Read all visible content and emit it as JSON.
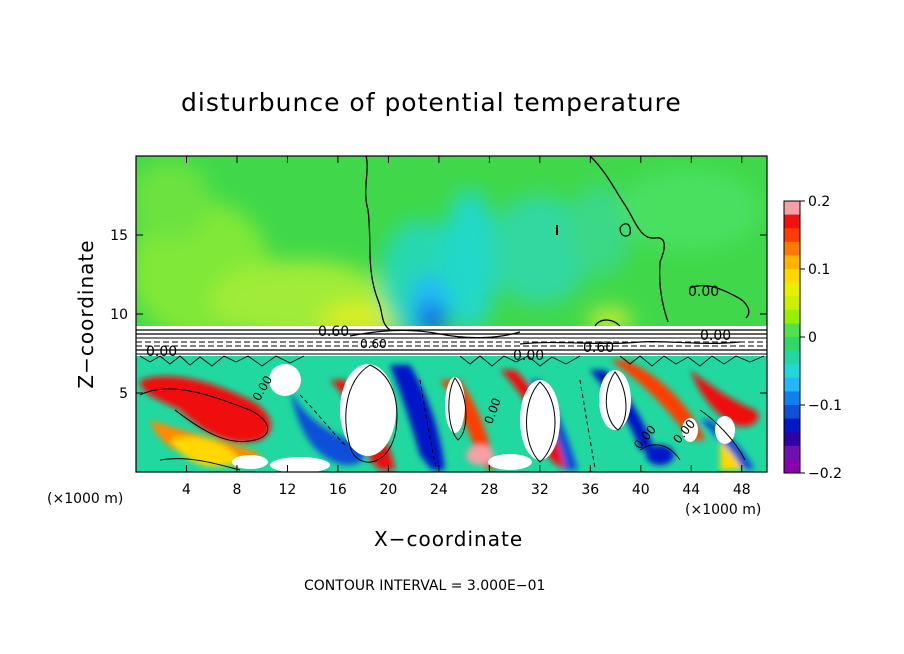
{
  "chart_data": {
    "type": "heatmap",
    "title": "disturbunce of potential temperature",
    "xlabel": "X−coordinate",
    "ylabel": "Z−coordinate",
    "x_unit": "(×1000 m)",
    "y_unit": "(×1000 m)",
    "x_ticks": [
      "4",
      "8",
      "12",
      "16",
      "20",
      "24",
      "28",
      "32",
      "36",
      "40",
      "44",
      "48"
    ],
    "y_ticks": [
      "5",
      "10",
      "15"
    ],
    "xlim": [
      0,
      50
    ],
    "ylim": [
      0,
      20
    ],
    "colorbar": {
      "ticks": [
        "0.2",
        "0.1",
        "0",
        "−0.1",
        "−0.2"
      ],
      "range": [
        -0.2,
        0.2
      ],
      "colors": [
        "#f4a0a4",
        "#f01010",
        "#ff3c00",
        "#ff7a00",
        "#ffb400",
        "#ffd800",
        "#e8f000",
        "#c8f000",
        "#96f000",
        "#50e050",
        "#30d86a",
        "#20d8a0",
        "#20d8d8",
        "#20b8f8",
        "#1080f0",
        "#1050d8",
        "#0018c8",
        "#3000a8",
        "#7010b0",
        "#8a00b0"
      ]
    },
    "contour_labels": [
      "0.60",
      "0.00",
      "0.00",
      "0.60",
      "0.00",
      "0.00",
      "0.60",
      "0.00",
      "0.00",
      "0.00",
      "0.00"
    ],
    "footer": "CONTOUR INTERVAL = 3.000E−01"
  }
}
